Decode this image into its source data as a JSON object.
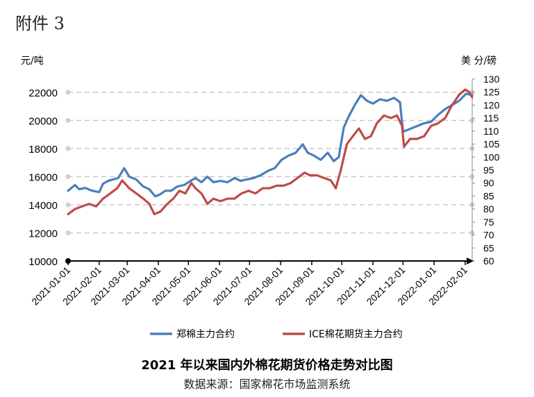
{
  "attachment_label": "附件 3",
  "caption": "2021 年以来国内外棉花期货价格走势对比图",
  "source": "数据来源：国家棉花市场监测系统",
  "colors": {
    "zce": "#4a7ebb",
    "ice": "#be4b48",
    "grid": "#c8c8c8",
    "axis": "#000000"
  },
  "chart_data": {
    "type": "line",
    "title": "",
    "subtitle": "",
    "left_unit": "元/吨",
    "right_unit": "美 分/磅",
    "x_ticks": [
      "2021-01-01",
      "2021-02-01",
      "2021-03-01",
      "2021-04-01",
      "2021-05-01",
      "2021-06-01",
      "2021-07-01",
      "2021-08-01",
      "2021-09-01",
      "2021-10-01",
      "2021-11-01",
      "2021-12-01",
      "2022-01-01",
      "2022-02-01"
    ],
    "x_range": [
      "2021-01-01",
      "2022-02-08"
    ],
    "y_left": {
      "min": 10000,
      "max": 22000,
      "ticks": [
        10000,
        12000,
        14000,
        16000,
        18000,
        20000,
        22000
      ],
      "tick_labels": [
        "10000",
        "12000",
        "14000",
        "16000",
        "18000",
        "20000",
        "22000"
      ]
    },
    "y_right": {
      "min": 60,
      "max": 130,
      "ticks": [
        60,
        65,
        70,
        75,
        80,
        85,
        90,
        95,
        100,
        105,
        110,
        115,
        120,
        125,
        130
      ],
      "tick_labels": [
        "60",
        "65",
        "70",
        "75",
        "80",
        "85",
        "90",
        "95",
        "100",
        "105",
        "110",
        "115",
        "120",
        "125",
        "130"
      ]
    },
    "grid": true,
    "legend_position": "bottom",
    "series": [
      {
        "name": "郑棉主力合约",
        "axis": "left",
        "points": [
          [
            "2021-01-01",
            15000
          ],
          [
            "2021-01-08",
            15400
          ],
          [
            "2021-01-12",
            15100
          ],
          [
            "2021-01-18",
            15200
          ],
          [
            "2021-01-25",
            15000
          ],
          [
            "2021-02-01",
            14900
          ],
          [
            "2021-02-05",
            15500
          ],
          [
            "2021-02-10",
            15700
          ],
          [
            "2021-02-20",
            15900
          ],
          [
            "2021-02-26",
            16600
          ],
          [
            "2021-03-03",
            16000
          ],
          [
            "2021-03-10",
            15800
          ],
          [
            "2021-03-17",
            15300
          ],
          [
            "2021-03-23",
            15100
          ],
          [
            "2021-03-29",
            14600
          ],
          [
            "2021-04-02",
            14700
          ],
          [
            "2021-04-08",
            15000
          ],
          [
            "2021-04-14",
            15000
          ],
          [
            "2021-04-20",
            15300
          ],
          [
            "2021-04-27",
            15400
          ],
          [
            "2021-05-03",
            15700
          ],
          [
            "2021-05-08",
            15900
          ],
          [
            "2021-05-14",
            15600
          ],
          [
            "2021-05-20",
            16000
          ],
          [
            "2021-05-26",
            15600
          ],
          [
            "2021-06-02",
            15700
          ],
          [
            "2021-06-09",
            15600
          ],
          [
            "2021-06-16",
            15900
          ],
          [
            "2021-06-22",
            15700
          ],
          [
            "2021-06-28",
            15800
          ],
          [
            "2021-07-05",
            15900
          ],
          [
            "2021-07-12",
            16100
          ],
          [
            "2021-07-19",
            16400
          ],
          [
            "2021-07-26",
            16600
          ],
          [
            "2021-08-02",
            17200
          ],
          [
            "2021-08-09",
            17500
          ],
          [
            "2021-08-16",
            17700
          ],
          [
            "2021-08-23",
            18300
          ],
          [
            "2021-08-28",
            17700
          ],
          [
            "2021-09-03",
            17500
          ],
          [
            "2021-09-10",
            17200
          ],
          [
            "2021-09-17",
            17700
          ],
          [
            "2021-09-23",
            17100
          ],
          [
            "2021-09-28",
            17400
          ],
          [
            "2021-10-03",
            19500
          ],
          [
            "2021-10-08",
            20300
          ],
          [
            "2021-10-14",
            21100
          ],
          [
            "2021-10-20",
            21800
          ],
          [
            "2021-10-26",
            21400
          ],
          [
            "2021-11-01",
            21200
          ],
          [
            "2021-11-08",
            21500
          ],
          [
            "2021-11-15",
            21400
          ],
          [
            "2021-11-22",
            21600
          ],
          [
            "2021-11-28",
            21300
          ],
          [
            "2021-12-01",
            19200
          ],
          [
            "2021-12-08",
            19400
          ],
          [
            "2021-12-15",
            19600
          ],
          [
            "2021-12-22",
            19800
          ],
          [
            "2021-12-29",
            19900
          ],
          [
            "2022-01-05",
            20400
          ],
          [
            "2022-01-12",
            20800
          ],
          [
            "2022-01-19",
            21100
          ],
          [
            "2022-01-26",
            21400
          ],
          [
            "2022-02-02",
            21900
          ],
          [
            "2022-02-08",
            21800
          ]
        ]
      },
      {
        "name": "ICE棉花期货主力合约",
        "axis": "right",
        "points": [
          [
            "2021-01-01",
            78
          ],
          [
            "2021-01-08",
            80
          ],
          [
            "2021-01-15",
            81
          ],
          [
            "2021-01-22",
            82
          ],
          [
            "2021-01-29",
            81
          ],
          [
            "2021-02-05",
            84
          ],
          [
            "2021-02-12",
            86
          ],
          [
            "2021-02-19",
            88
          ],
          [
            "2021-02-24",
            91
          ],
          [
            "2021-03-03",
            88
          ],
          [
            "2021-03-10",
            86
          ],
          [
            "2021-03-17",
            84
          ],
          [
            "2021-03-23",
            82
          ],
          [
            "2021-03-28",
            78
          ],
          [
            "2021-04-03",
            79
          ],
          [
            "2021-04-10",
            82
          ],
          [
            "2021-04-16",
            84
          ],
          [
            "2021-04-22",
            87
          ],
          [
            "2021-04-28",
            86
          ],
          [
            "2021-05-04",
            90
          ],
          [
            "2021-05-08",
            88
          ],
          [
            "2021-05-14",
            86
          ],
          [
            "2021-05-20",
            82
          ],
          [
            "2021-05-26",
            84
          ],
          [
            "2021-06-02",
            83
          ],
          [
            "2021-06-09",
            84
          ],
          [
            "2021-06-16",
            84
          ],
          [
            "2021-06-23",
            86
          ],
          [
            "2021-06-30",
            87
          ],
          [
            "2021-07-07",
            86
          ],
          [
            "2021-07-14",
            88
          ],
          [
            "2021-07-21",
            88
          ],
          [
            "2021-07-28",
            89
          ],
          [
            "2021-08-04",
            89
          ],
          [
            "2021-08-11",
            90
          ],
          [
            "2021-08-18",
            92
          ],
          [
            "2021-08-25",
            94
          ],
          [
            "2021-08-30",
            93
          ],
          [
            "2021-09-06",
            93
          ],
          [
            "2021-09-13",
            92
          ],
          [
            "2021-09-20",
            91
          ],
          [
            "2021-09-25",
            88
          ],
          [
            "2021-09-30",
            95
          ],
          [
            "2021-10-06",
            105
          ],
          [
            "2021-10-12",
            108
          ],
          [
            "2021-10-18",
            111
          ],
          [
            "2021-10-24",
            107
          ],
          [
            "2021-10-30",
            108
          ],
          [
            "2021-11-05",
            113
          ],
          [
            "2021-11-12",
            116
          ],
          [
            "2021-11-19",
            115
          ],
          [
            "2021-11-25",
            116
          ],
          [
            "2021-11-30",
            112
          ],
          [
            "2021-12-02",
            104
          ],
          [
            "2021-12-08",
            107
          ],
          [
            "2021-12-15",
            107
          ],
          [
            "2021-12-22",
            108
          ],
          [
            "2021-12-29",
            112
          ],
          [
            "2022-01-05",
            113
          ],
          [
            "2022-01-12",
            115
          ],
          [
            "2022-01-19",
            120
          ],
          [
            "2022-01-26",
            124
          ],
          [
            "2022-02-01",
            126
          ],
          [
            "2022-02-05",
            125
          ],
          [
            "2022-02-08",
            123
          ]
        ]
      }
    ]
  }
}
